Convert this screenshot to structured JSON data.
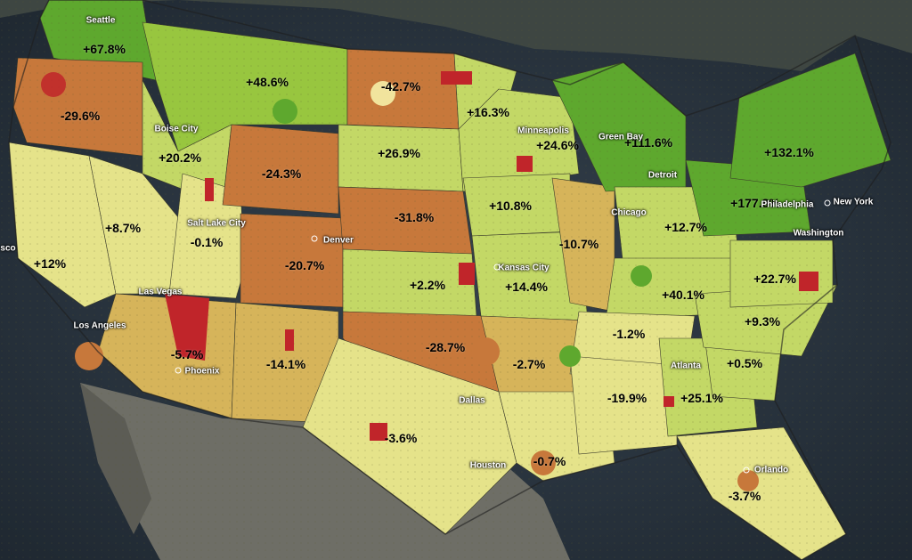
{
  "map": {
    "colors": {
      "strong_decline": "#c0252a",
      "decline": "#c7783b",
      "mild_decline": "#d6b45a",
      "neutral": "#e5e38a",
      "light_growth": "#c3d866",
      "growth": "#98c63f",
      "strong_growth": "#5ea82e",
      "metro_light": "#f5f0a8",
      "ocean": "#2b3540",
      "canada": "#3e4642",
      "mexico": "#6e6e66"
    },
    "regions": [
      {
        "id": "pacific-nw",
        "label": "+67.8%",
        "color": "strong_growth"
      },
      {
        "id": "montana",
        "label": "+48.6%",
        "color": "growth"
      },
      {
        "id": "oregon",
        "label": "-29.6%",
        "color": "decline"
      },
      {
        "id": "idaho",
        "label": "+20.2%",
        "color": "light_growth"
      },
      {
        "id": "north-dakota",
        "label": "-42.7%",
        "color": "decline"
      },
      {
        "id": "minnesota-east",
        "label": "+16.3%",
        "color": "light_growth"
      },
      {
        "id": "south-dakota",
        "label": "+26.9%",
        "color": "light_growth"
      },
      {
        "id": "wyoming",
        "label": "-24.3%",
        "color": "decline"
      },
      {
        "id": "minnesota",
        "label": "+24.6%",
        "color": "light_growth"
      },
      {
        "id": "michigan",
        "label": "+111.6%",
        "color": "strong_growth"
      },
      {
        "id": "northeast",
        "label": "+132.1%",
        "color": "strong_growth"
      },
      {
        "id": "nebraska",
        "label": "-31.8%",
        "color": "decline"
      },
      {
        "id": "iowa",
        "label": "+10.8%",
        "color": "light_growth"
      },
      {
        "id": "pennsylvania",
        "label": "+177.8%",
        "color": "strong_growth"
      },
      {
        "id": "nevada-utah",
        "label": "+8.7%",
        "color": "neutral"
      },
      {
        "id": "utah",
        "label": "-0.1%",
        "color": "neutral"
      },
      {
        "id": "colorado",
        "label": "-20.7%",
        "color": "decline"
      },
      {
        "id": "illinois",
        "label": "-10.7%",
        "color": "mild_decline"
      },
      {
        "id": "ohio",
        "label": "+12.7%",
        "color": "light_growth"
      },
      {
        "id": "california-north",
        "label": "+12%",
        "color": "neutral"
      },
      {
        "id": "kansas",
        "label": "+2.2%",
        "color": "light_growth"
      },
      {
        "id": "missouri",
        "label": "+14.4%",
        "color": "light_growth"
      },
      {
        "id": "virginia",
        "label": "+22.7%",
        "color": "light_growth"
      },
      {
        "id": "kentucky",
        "label": "+40.1%",
        "color": "light_growth"
      },
      {
        "id": "carolinas",
        "label": "+9.3%",
        "color": "light_growth"
      },
      {
        "id": "tennessee",
        "label": "-1.2%",
        "color": "neutral"
      },
      {
        "id": "arizona",
        "label": "-5.7%",
        "color": "mild_decline"
      },
      {
        "id": "new-mexico",
        "label": "-14.1%",
        "color": "mild_decline"
      },
      {
        "id": "oklahoma",
        "label": "-28.7%",
        "color": "decline"
      },
      {
        "id": "arkansas",
        "label": "-2.7%",
        "color": "mild_decline"
      },
      {
        "id": "georgia-east",
        "label": "+0.5%",
        "color": "light_growth"
      },
      {
        "id": "alabama",
        "label": "-19.9%",
        "color": "neutral"
      },
      {
        "id": "georgia",
        "label": "+25.1%",
        "color": "light_growth"
      },
      {
        "id": "texas",
        "label": "-3.6%",
        "color": "neutral"
      },
      {
        "id": "gulf",
        "label": "-0.7%",
        "color": "neutral"
      },
      {
        "id": "florida",
        "label": "-3.7%",
        "color": "neutral"
      }
    ],
    "cities": [
      {
        "name": "Seattle"
      },
      {
        "name": "Boise City"
      },
      {
        "name": "Salt Lake City"
      },
      {
        "name": "Denver"
      },
      {
        "name": "Las Vegas"
      },
      {
        "name": "Los Angeles"
      },
      {
        "name": "Phoenix"
      },
      {
        "name": "sco"
      },
      {
        "name": "Minneapolis"
      },
      {
        "name": "Green Bay"
      },
      {
        "name": "Detroit"
      },
      {
        "name": "Chicago"
      },
      {
        "name": "Kansas City"
      },
      {
        "name": "Philadelphia"
      },
      {
        "name": "New York"
      },
      {
        "name": "Washington"
      },
      {
        "name": "Dallas"
      },
      {
        "name": "Houston"
      },
      {
        "name": "Atlanta"
      },
      {
        "name": "Orlando"
      }
    ]
  }
}
